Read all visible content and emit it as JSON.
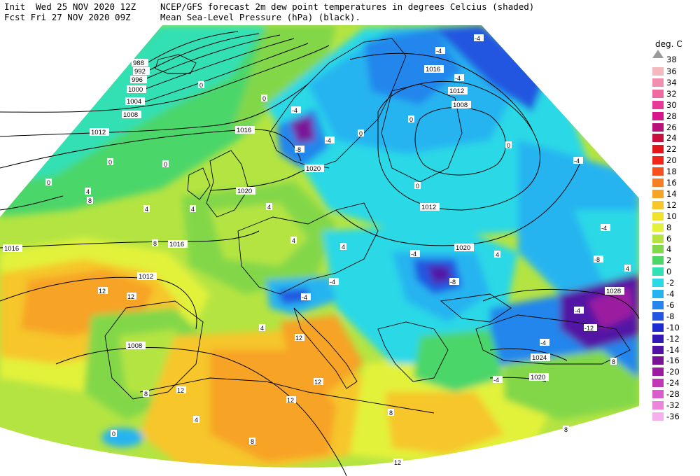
{
  "header": {
    "init_line": "Init  Wed 25 NOV 2020 12Z",
    "fcst_line": "Fcst Fri 27 NOV 2020 09Z",
    "title_line1": "NCEP/GFS forecast 2m dew point temperatures in degrees Celcius (shaded)",
    "title_line2": "Mean Sea-Level Pressure (hPa) (black)."
  },
  "legend": {
    "unit": "deg. C",
    "top_label": "38",
    "items": [
      {
        "label": "36",
        "color": "#f4b8c0"
      },
      {
        "label": "34",
        "color": "#f28fb0"
      },
      {
        "label": "32",
        "color": "#ef6aa0"
      },
      {
        "label": "30",
        "color": "#e8399a"
      },
      {
        "label": "28",
        "color": "#d6158c"
      },
      {
        "label": "26",
        "color": "#b8127a"
      },
      {
        "label": "24",
        "color": "#c9103c"
      },
      {
        "label": "22",
        "color": "#e0161c"
      },
      {
        "label": "20",
        "color": "#f2251a"
      },
      {
        "label": "18",
        "color": "#f5501e"
      },
      {
        "label": "16",
        "color": "#f77e22"
      },
      {
        "label": "14",
        "color": "#f7a326"
      },
      {
        "label": "12",
        "color": "#f6c62a"
      },
      {
        "label": "10",
        "color": "#f2e22e"
      },
      {
        "label": "8",
        "color": "#e2f23a"
      },
      {
        "label": "6",
        "color": "#b4e442"
      },
      {
        "label": "4",
        "color": "#82d74a"
      },
      {
        "label": "2",
        "color": "#4cd66a"
      },
      {
        "label": "0",
        "color": "#33e0b4"
      },
      {
        "label": "-2",
        "color": "#2ad8e6"
      },
      {
        "label": "-4",
        "color": "#26b4f0"
      },
      {
        "label": "-6",
        "color": "#2486ec"
      },
      {
        "label": "-8",
        "color": "#2256e0"
      },
      {
        "label": "-10",
        "color": "#1c2cd0"
      },
      {
        "label": "-12",
        "color": "#3418b4"
      },
      {
        "label": "-14",
        "color": "#5212a4"
      },
      {
        "label": "-16",
        "color": "#7a1298"
      },
      {
        "label": "-20",
        "color": "#9c1aa0"
      },
      {
        "label": "-24",
        "color": "#c038b4"
      },
      {
        "label": "-28",
        "color": "#da5ccc"
      },
      {
        "label": "-32",
        "color": "#ec84dc"
      },
      {
        "label": "-36",
        "color": "#f6aeec"
      }
    ]
  },
  "isobar_labels": [
    "988",
    "992",
    "996",
    "1000",
    "1004",
    "1008",
    "1012",
    "1016",
    "1020",
    "1016",
    "1016",
    "1012",
    "1008",
    "1020",
    "1016",
    "1012",
    "1008",
    "1012",
    "1020",
    "1028",
    "1024",
    "1020"
  ],
  "dewpoint_labels": [
    "0",
    "0",
    "0",
    "0",
    "0",
    "4",
    "-4",
    "-8",
    "-4",
    "-4",
    "-4",
    "-4",
    "0",
    "0",
    "0",
    "0",
    "4",
    "4",
    "4",
    "8",
    "8",
    "12",
    "12",
    "-4",
    "-8",
    "-4",
    "-4",
    "-4",
    "-4",
    "-8",
    "-4",
    "-12",
    "-4",
    "-4",
    "8",
    "4",
    "4",
    "12",
    "12",
    "12",
    "12",
    "8",
    "8",
    "4",
    "0",
    "12",
    "8",
    "8",
    "4",
    "8",
    "4",
    "4"
  ]
}
